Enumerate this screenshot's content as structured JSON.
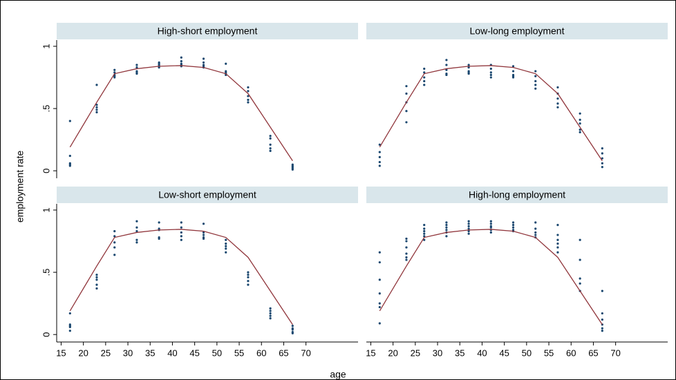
{
  "x_label": "age",
  "y_label": "employment rate",
  "chart_data": [
    {
      "type": "scatter",
      "title": "High-short employment",
      "xlim": [
        14,
        81.7
      ],
      "ylim": [
        -0.06,
        1.05
      ],
      "yticks": [
        0,
        {
          "value": 0.5,
          "label": ".5"
        },
        1
      ],
      "series": [
        {
          "type": "scatter",
          "color": "#1a476f",
          "x": [
            17,
            17,
            17,
            17,
            17,
            23,
            23,
            23,
            23,
            23,
            27,
            27,
            27,
            27,
            27,
            32,
            32,
            32,
            32,
            32,
            37,
            37,
            37,
            37,
            37,
            42,
            42,
            42,
            42,
            42,
            47,
            47,
            47,
            47,
            47,
            52,
            52,
            52,
            52,
            52,
            57,
            57,
            57,
            57,
            57,
            62,
            62,
            62,
            62,
            62,
            67,
            67,
            67,
            67,
            67
          ],
          "values": [
            0.4,
            0.12,
            0.06,
            0.05,
            0.04,
            0.69,
            0.53,
            0.51,
            0.49,
            0.47,
            0.81,
            0.79,
            0.77,
            0.76,
            0.75,
            0.85,
            0.83,
            0.8,
            0.79,
            0.78,
            0.87,
            0.86,
            0.85,
            0.84,
            0.83,
            0.91,
            0.88,
            0.86,
            0.85,
            0.84,
            0.9,
            0.87,
            0.85,
            0.84,
            0.83,
            0.86,
            0.8,
            0.79,
            0.78,
            0.77,
            0.67,
            0.64,
            0.6,
            0.57,
            0.55,
            0.28,
            0.26,
            0.21,
            0.18,
            0.16,
            0.05,
            0.04,
            0.03,
            0.02,
            0.01
          ]
        },
        {
          "type": "line",
          "color": "#90353b",
          "x": [
            17,
            23,
            27,
            32,
            37,
            42,
            47,
            52,
            57,
            62,
            67
          ],
          "values": [
            0.19,
            0.55,
            0.78,
            0.82,
            0.84,
            0.845,
            0.83,
            0.78,
            0.62,
            0.35,
            0.08
          ]
        }
      ]
    },
    {
      "type": "scatter",
      "title": "Low-long employment",
      "xlim": [
        14,
        81.7
      ],
      "ylim": [
        -0.06,
        1.05
      ],
      "series": [
        {
          "type": "scatter",
          "color": "#1a476f",
          "x": [
            17,
            17,
            17,
            17,
            17,
            23,
            23,
            23,
            23,
            23,
            27,
            27,
            27,
            27,
            27,
            32,
            32,
            32,
            32,
            32,
            37,
            37,
            37,
            37,
            37,
            42,
            42,
            42,
            42,
            42,
            47,
            47,
            47,
            47,
            47,
            52,
            52,
            52,
            52,
            52,
            57,
            57,
            57,
            57,
            57,
            62,
            62,
            62,
            62,
            62,
            67,
            67,
            67,
            67,
            67
          ],
          "values": [
            0.21,
            0.15,
            0.11,
            0.07,
            0.04,
            0.68,
            0.62,
            0.55,
            0.48,
            0.39,
            0.82,
            0.79,
            0.75,
            0.72,
            0.69,
            0.89,
            0.85,
            0.81,
            0.78,
            0.77,
            0.85,
            0.83,
            0.8,
            0.79,
            0.78,
            0.85,
            0.82,
            0.79,
            0.77,
            0.75,
            0.84,
            0.8,
            0.77,
            0.76,
            0.75,
            0.8,
            0.76,
            0.72,
            0.69,
            0.66,
            0.67,
            0.62,
            0.58,
            0.54,
            0.51,
            0.46,
            0.41,
            0.38,
            0.33,
            0.31,
            0.18,
            0.14,
            0.1,
            0.06,
            0.03
          ]
        },
        {
          "type": "line",
          "color": "#90353b",
          "x": [
            17,
            23,
            27,
            32,
            37,
            42,
            47,
            52,
            57,
            62,
            67
          ],
          "values": [
            0.19,
            0.55,
            0.78,
            0.82,
            0.84,
            0.845,
            0.83,
            0.78,
            0.62,
            0.35,
            0.08
          ]
        }
      ]
    },
    {
      "type": "scatter",
      "title": "Low-short employment",
      "xlim": [
        14,
        81.7
      ],
      "ylim": [
        -0.06,
        1.05
      ],
      "yticks": [
        0,
        {
          "value": 0.5,
          "label": ".5"
        },
        1
      ],
      "xticks": [
        15,
        20,
        25,
        30,
        35,
        40,
        45,
        50,
        55,
        60,
        65,
        70
      ],
      "series": [
        {
          "type": "scatter",
          "color": "#1a476f",
          "x": [
            17,
            17,
            17,
            17,
            17,
            23,
            23,
            23,
            23,
            23,
            27,
            27,
            27,
            27,
            27,
            32,
            32,
            32,
            32,
            32,
            37,
            37,
            37,
            37,
            37,
            42,
            42,
            42,
            42,
            42,
            47,
            47,
            47,
            47,
            47,
            52,
            52,
            52,
            52,
            52,
            57,
            57,
            57,
            57,
            57,
            62,
            62,
            62,
            62,
            62,
            67,
            67,
            67,
            67,
            67
          ],
          "values": [
            0.17,
            0.08,
            0.07,
            0.06,
            0.03,
            0.48,
            0.46,
            0.44,
            0.4,
            0.37,
            0.83,
            0.79,
            0.74,
            0.7,
            0.64,
            0.91,
            0.86,
            0.83,
            0.76,
            0.74,
            0.9,
            0.85,
            0.84,
            0.78,
            0.77,
            0.9,
            0.86,
            0.82,
            0.79,
            0.76,
            0.89,
            0.82,
            0.8,
            0.78,
            0.77,
            0.76,
            0.73,
            0.71,
            0.69,
            0.66,
            0.5,
            0.48,
            0.46,
            0.43,
            0.4,
            0.21,
            0.19,
            0.17,
            0.15,
            0.13,
            0.07,
            0.05,
            0.04,
            0.02,
            0.01
          ]
        },
        {
          "type": "line",
          "color": "#90353b",
          "x": [
            17,
            23,
            27,
            32,
            37,
            42,
            47,
            52,
            57,
            62,
            67
          ],
          "values": [
            0.19,
            0.55,
            0.78,
            0.82,
            0.84,
            0.845,
            0.83,
            0.78,
            0.62,
            0.35,
            0.08
          ]
        }
      ]
    },
    {
      "type": "scatter",
      "title": "High-long employment",
      "xlim": [
        14,
        81.7
      ],
      "ylim": [
        -0.06,
        1.05
      ],
      "xticks": [
        15,
        20,
        25,
        30,
        35,
        40,
        45,
        50,
        55,
        60,
        65,
        70
      ],
      "series": [
        {
          "type": "scatter",
          "color": "#1a476f",
          "x": [
            17,
            17,
            17,
            17,
            17,
            17,
            17,
            23,
            23,
            23,
            23,
            23,
            23,
            27,
            27,
            27,
            27,
            27,
            27,
            32,
            32,
            32,
            32,
            32,
            32,
            37,
            37,
            37,
            37,
            37,
            37,
            42,
            42,
            42,
            42,
            42,
            42,
            47,
            47,
            47,
            47,
            47,
            52,
            52,
            52,
            52,
            52,
            57,
            57,
            57,
            57,
            57,
            57,
            62,
            62,
            62,
            62,
            62,
            67,
            67,
            67,
            67,
            67,
            67
          ],
          "values": [
            0.66,
            0.58,
            0.44,
            0.33,
            0.25,
            0.22,
            0.09,
            0.77,
            0.75,
            0.7,
            0.65,
            0.62,
            0.6,
            0.88,
            0.85,
            0.83,
            0.81,
            0.79,
            0.76,
            0.9,
            0.88,
            0.86,
            0.84,
            0.82,
            0.79,
            0.91,
            0.89,
            0.87,
            0.85,
            0.83,
            0.81,
            0.91,
            0.89,
            0.87,
            0.86,
            0.84,
            0.82,
            0.9,
            0.88,
            0.86,
            0.84,
            0.83,
            0.9,
            0.85,
            0.82,
            0.8,
            0.78,
            0.88,
            0.8,
            0.76,
            0.73,
            0.7,
            0.66,
            0.76,
            0.6,
            0.45,
            0.41,
            0.35,
            0.35,
            0.17,
            0.12,
            0.08,
            0.05,
            0.03
          ]
        },
        {
          "type": "line",
          "color": "#90353b",
          "x": [
            17,
            23,
            27,
            32,
            37,
            42,
            47,
            52,
            57,
            62,
            67
          ],
          "values": [
            0.19,
            0.55,
            0.78,
            0.82,
            0.84,
            0.845,
            0.83,
            0.78,
            0.62,
            0.35,
            0.08
          ]
        }
      ]
    }
  ]
}
